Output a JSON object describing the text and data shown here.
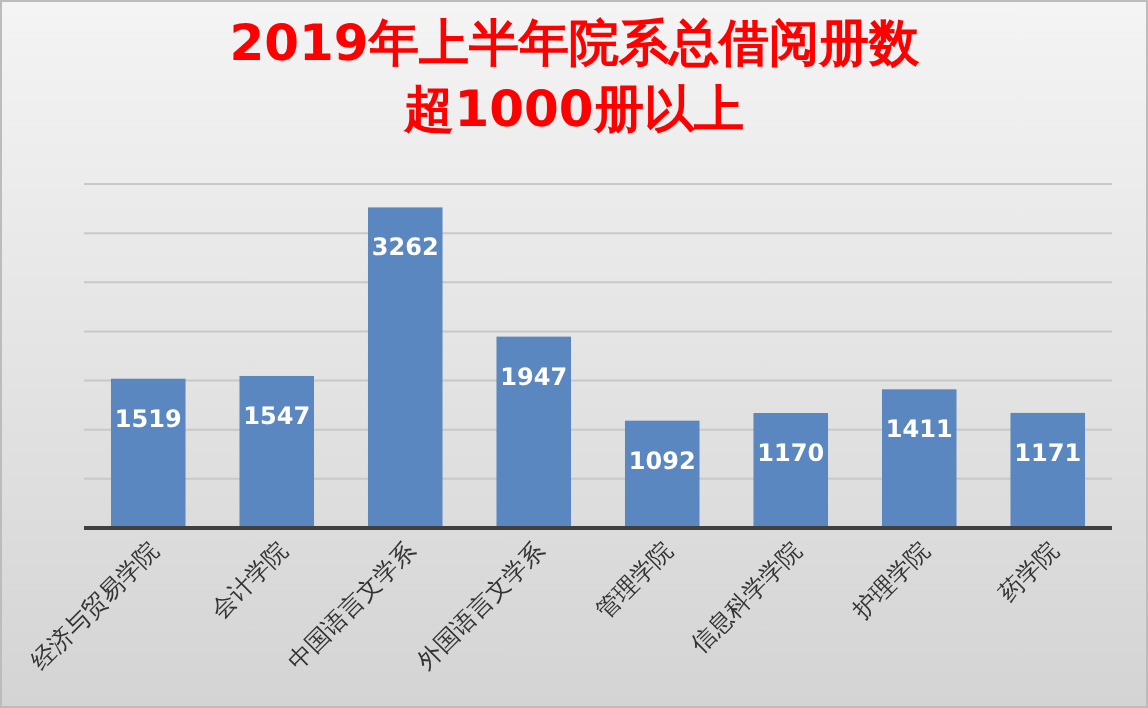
{
  "chart_data": {
    "type": "bar",
    "title": "2019年上半年院系总借阅册数超1000册以上",
    "categories": [
      "经济与贸易学院",
      "会计学院",
      "中国语言文学系",
      "外国语言文学系",
      "管理学院",
      "信息科学学院",
      "护理学院",
      "药学院"
    ],
    "values": [
      1519,
      1547,
      3262,
      1947,
      1092,
      1170,
      1411,
      1171
    ],
    "color": "#5b87c0",
    "data_labels": true,
    "grid": "y",
    "tick_labels": "x",
    "ylim": [
      0,
      3500
    ],
    "yticks": [
      {
        "value": 0,
        "label": null
      },
      {
        "value": 500,
        "label": null
      },
      {
        "value": 1000,
        "label": null
      },
      {
        "value": 1500,
        "label": null
      },
      {
        "value": 2000,
        "label": null
      },
      {
        "value": 2500,
        "label": null
      },
      {
        "value": 3000,
        "label": null
      },
      {
        "value": 3500,
        "label": null
      }
    ]
  }
}
